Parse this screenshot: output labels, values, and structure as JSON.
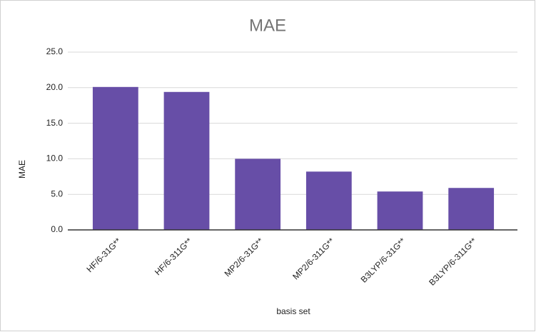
{
  "chart_data": {
    "type": "bar",
    "title": "MAE",
    "x_label": "basis set",
    "y_label": "MAE",
    "categories": [
      "HF/6-31G**",
      "HF/6-311G**",
      "MP2/6-31G**",
      "MP2/6-311G**",
      "B3LYP/6-31G**",
      "B3LYP/6-311G**"
    ],
    "values": [
      20.1,
      19.4,
      10.0,
      8.2,
      5.4,
      5.9
    ],
    "color": "#674ea7",
    "ylim": [
      0,
      25
    ],
    "yticks": [
      {
        "value": 0,
        "label": "0.0"
      },
      {
        "value": 5,
        "label": "5.0"
      },
      {
        "value": 10,
        "label": "10.0"
      },
      {
        "value": 15,
        "label": "15.0"
      },
      {
        "value": 20,
        "label": "20.0"
      },
      {
        "value": 25,
        "label": "25.0"
      }
    ],
    "grid": true
  }
}
